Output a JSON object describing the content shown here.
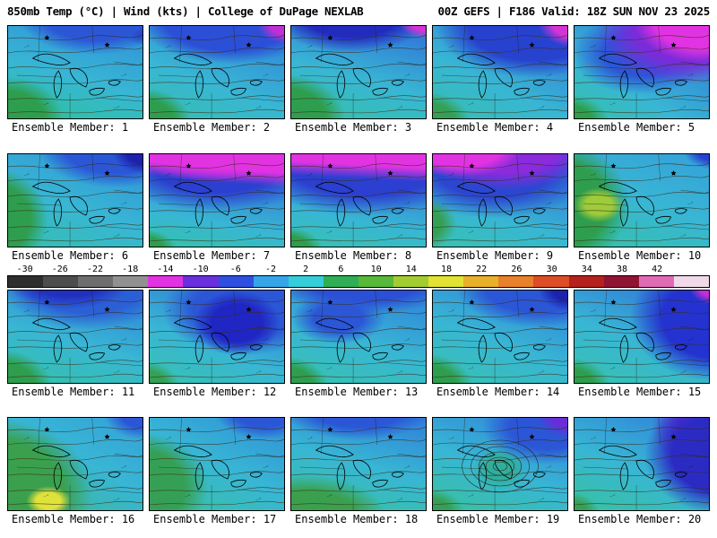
{
  "header": {
    "left": "850mb Temp (°C) | Wind (kts) | College of DuPage NEXLAB",
    "right": "00Z GEFS | F186 Valid: 18Z SUN NOV 23 2025"
  },
  "panels": {
    "labels": [
      "Ensemble Member: 1",
      "Ensemble Member: 2",
      "Ensemble Member: 3",
      "Ensemble Member: 4",
      "Ensemble Member: 5",
      "Ensemble Member: 6",
      "Ensemble Member: 7",
      "Ensemble Member: 8",
      "Ensemble Member: 9",
      "Ensemble Member: 10",
      "Ensemble Member: 11",
      "Ensemble Member: 12",
      "Ensemble Member: 13",
      "Ensemble Member: 14",
      "Ensemble Member: 15",
      "Ensemble Member: 16",
      "Ensemble Member: 17",
      "Ensemble Member: 18",
      "Ensemble Member: 19",
      "Ensemble Member: 20"
    ]
  },
  "colorbar": {
    "ticks": [
      "-30",
      "-26",
      "-22",
      "-18",
      "-14",
      "-10",
      "-6",
      "-2",
      "2",
      "6",
      "10",
      "14",
      "18",
      "22",
      "26",
      "30",
      "34",
      "38",
      "42"
    ],
    "colors": [
      "#2e2e2e",
      "#4d4d4d",
      "#6e6e6e",
      "#919191",
      "#e233e2",
      "#6930dd",
      "#2f4fe0",
      "#35a5e8",
      "#35cdd9",
      "#2fae56",
      "#57b83a",
      "#a3cc33",
      "#e2e233",
      "#e8b02b",
      "#e8812b",
      "#dd4d26",
      "#b5211c",
      "#8f1433",
      "#e06bb5",
      "#f0d9e8"
    ]
  }
}
